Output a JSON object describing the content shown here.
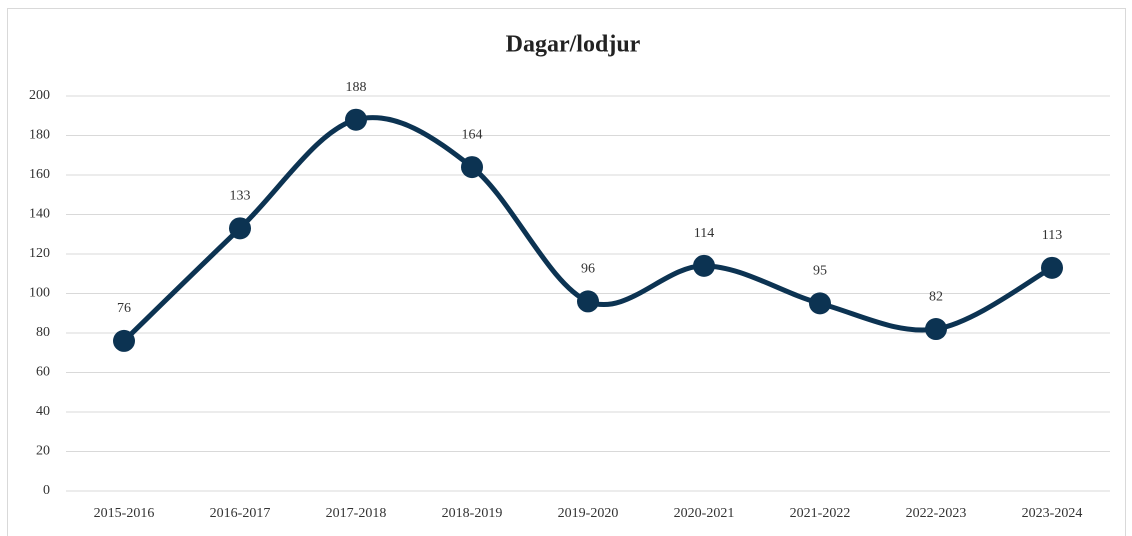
{
  "chart_data": {
    "type": "line",
    "title": "Dagar/lodjur",
    "categories": [
      "2015-2016",
      "2016-2017",
      "2017-2018",
      "2018-2019",
      "2019-2020",
      "2020-2021",
      "2021-2022",
      "2022-2023",
      "2023-2024"
    ],
    "series": [
      {
        "name": "Dagar/lodjur",
        "color": "#0c3352",
        "values": [
          76,
          133,
          188,
          164,
          96,
          114,
          95,
          82,
          113
        ]
      }
    ],
    "ylim": [
      0,
      200
    ],
    "yticks": [
      0,
      20,
      40,
      60,
      80,
      100,
      120,
      140,
      160,
      180,
      200
    ],
    "grid": true,
    "smooth": true,
    "legend": false
  }
}
